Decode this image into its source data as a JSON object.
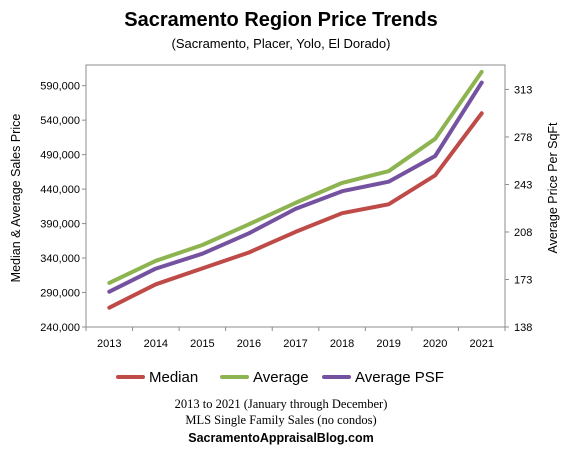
{
  "chart_data": {
    "type": "line",
    "title": "Sacramento Region Price Trends",
    "subtitle": "(Sacramento, Placer, Yolo, El Dorado)",
    "xlabel": "",
    "ylabel": "Median & Average Sales Price",
    "y2label": "Average Price Per SqFt",
    "categories": [
      "2013",
      "2014",
      "2015",
      "2016",
      "2017",
      "2018",
      "2019",
      "2020",
      "2021"
    ],
    "ylim": [
      240000,
      620000
    ],
    "y_ticks": [
      "240,000",
      "290,000",
      "340,000",
      "390,000",
      "440,000",
      "490,000",
      "540,000",
      "590,000"
    ],
    "y2lim": [
      138,
      331
    ],
    "y2_ticks": [
      "138",
      "173",
      "208",
      "243",
      "278",
      "313"
    ],
    "grid": false,
    "legend_position": "bottom",
    "series": [
      {
        "name": "Median",
        "axis": "left",
        "color": "#be4b48",
        "values": [
          268000,
          302000,
          325000,
          348000,
          378000,
          405000,
          418000,
          460000,
          550000
        ]
      },
      {
        "name": "Average",
        "axis": "left",
        "color": "#8db451",
        "values": [
          304000,
          336000,
          359000,
          389000,
          420000,
          449000,
          466000,
          513000,
          610000
        ]
      },
      {
        "name": "Average PSF",
        "axis": "right",
        "color": "#7452a0",
        "values": [
          164,
          181,
          192,
          207,
          225,
          238,
          245,
          264,
          318
        ]
      }
    ]
  },
  "footer": {
    "line1": "2013  to 2021  (January through December)",
    "line2": "MLS Single Family Sales (no condos)",
    "line3": "SacramentoAppraisalBlog.com"
  }
}
